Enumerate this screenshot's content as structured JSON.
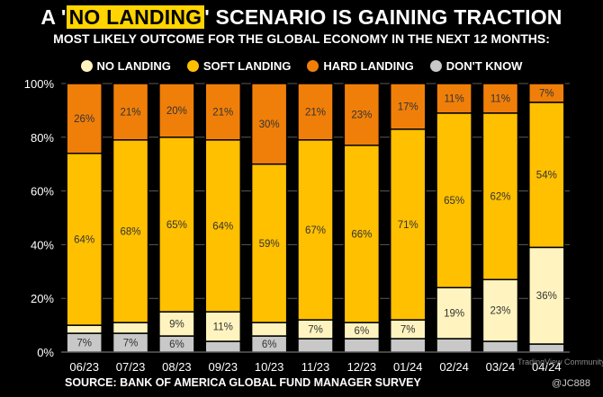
{
  "title": {
    "prefix": "A '",
    "highlight": "NO LANDING",
    "suffix": "' SCENARIO IS GAINING TRACTION"
  },
  "subtitle": "MOST LIKELY OUTCOME FOR THE GLOBAL ECONOMY IN THE NEXT 12 MONTHS:",
  "legend": [
    {
      "label": "NO LANDING",
      "color": "#fff4bf"
    },
    {
      "label": "SOFT LANDING",
      "color": "#ffc000"
    },
    {
      "label": "HARD LANDING",
      "color": "#f07f09"
    },
    {
      "label": "DON'T KNOW",
      "color": "#c8c8c8"
    }
  ],
  "source": "SOURCE: BANK OF AMERICA GLOBAL FUND MANAGER SURVEY",
  "handle": "@JC888",
  "watermark": "TradingView Community",
  "chart_data": {
    "type": "bar",
    "stacked": true,
    "categories": [
      "06/23",
      "07/23",
      "08/23",
      "09/23",
      "10/23",
      "11/23",
      "12/23",
      "01/24",
      "02/24",
      "03/24",
      "04/24"
    ],
    "ylim": [
      0,
      100
    ],
    "yticks": [
      "0%",
      "20%",
      "40%",
      "60%",
      "80%",
      "100%"
    ],
    "series": [
      {
        "name": "DON'T KNOW",
        "color": "#c8c8c8",
        "values": [
          7,
          7,
          6,
          4,
          6,
          5,
          5,
          5,
          5,
          4,
          3
        ],
        "labels": [
          "7%",
          "7%",
          "6%",
          "",
          "6%",
          "",
          "",
          "",
          "",
          "",
          ""
        ]
      },
      {
        "name": "NO LANDING",
        "color": "#fff4bf",
        "values": [
          3,
          4,
          9,
          11,
          5,
          7,
          6,
          7,
          19,
          23,
          36
        ],
        "labels": [
          "",
          "",
          "9%",
          "11%",
          "",
          "7%",
          "6%",
          "7%",
          "19%",
          "23%",
          "36%"
        ]
      },
      {
        "name": "SOFT LANDING",
        "color": "#ffc000",
        "values": [
          64,
          68,
          65,
          64,
          59,
          67,
          66,
          71,
          65,
          62,
          54
        ],
        "labels": [
          "64%",
          "68%",
          "65%",
          "64%",
          "59%",
          "67%",
          "66%",
          "71%",
          "65%",
          "62%",
          "54%"
        ]
      },
      {
        "name": "HARD LANDING",
        "color": "#f07f09",
        "values": [
          26,
          21,
          20,
          21,
          30,
          21,
          23,
          17,
          11,
          11,
          7
        ],
        "labels": [
          "26%",
          "21%",
          "20%",
          "21%",
          "30%",
          "21%",
          "23%",
          "17%",
          "11%",
          "11%",
          "7%"
        ]
      }
    ]
  }
}
